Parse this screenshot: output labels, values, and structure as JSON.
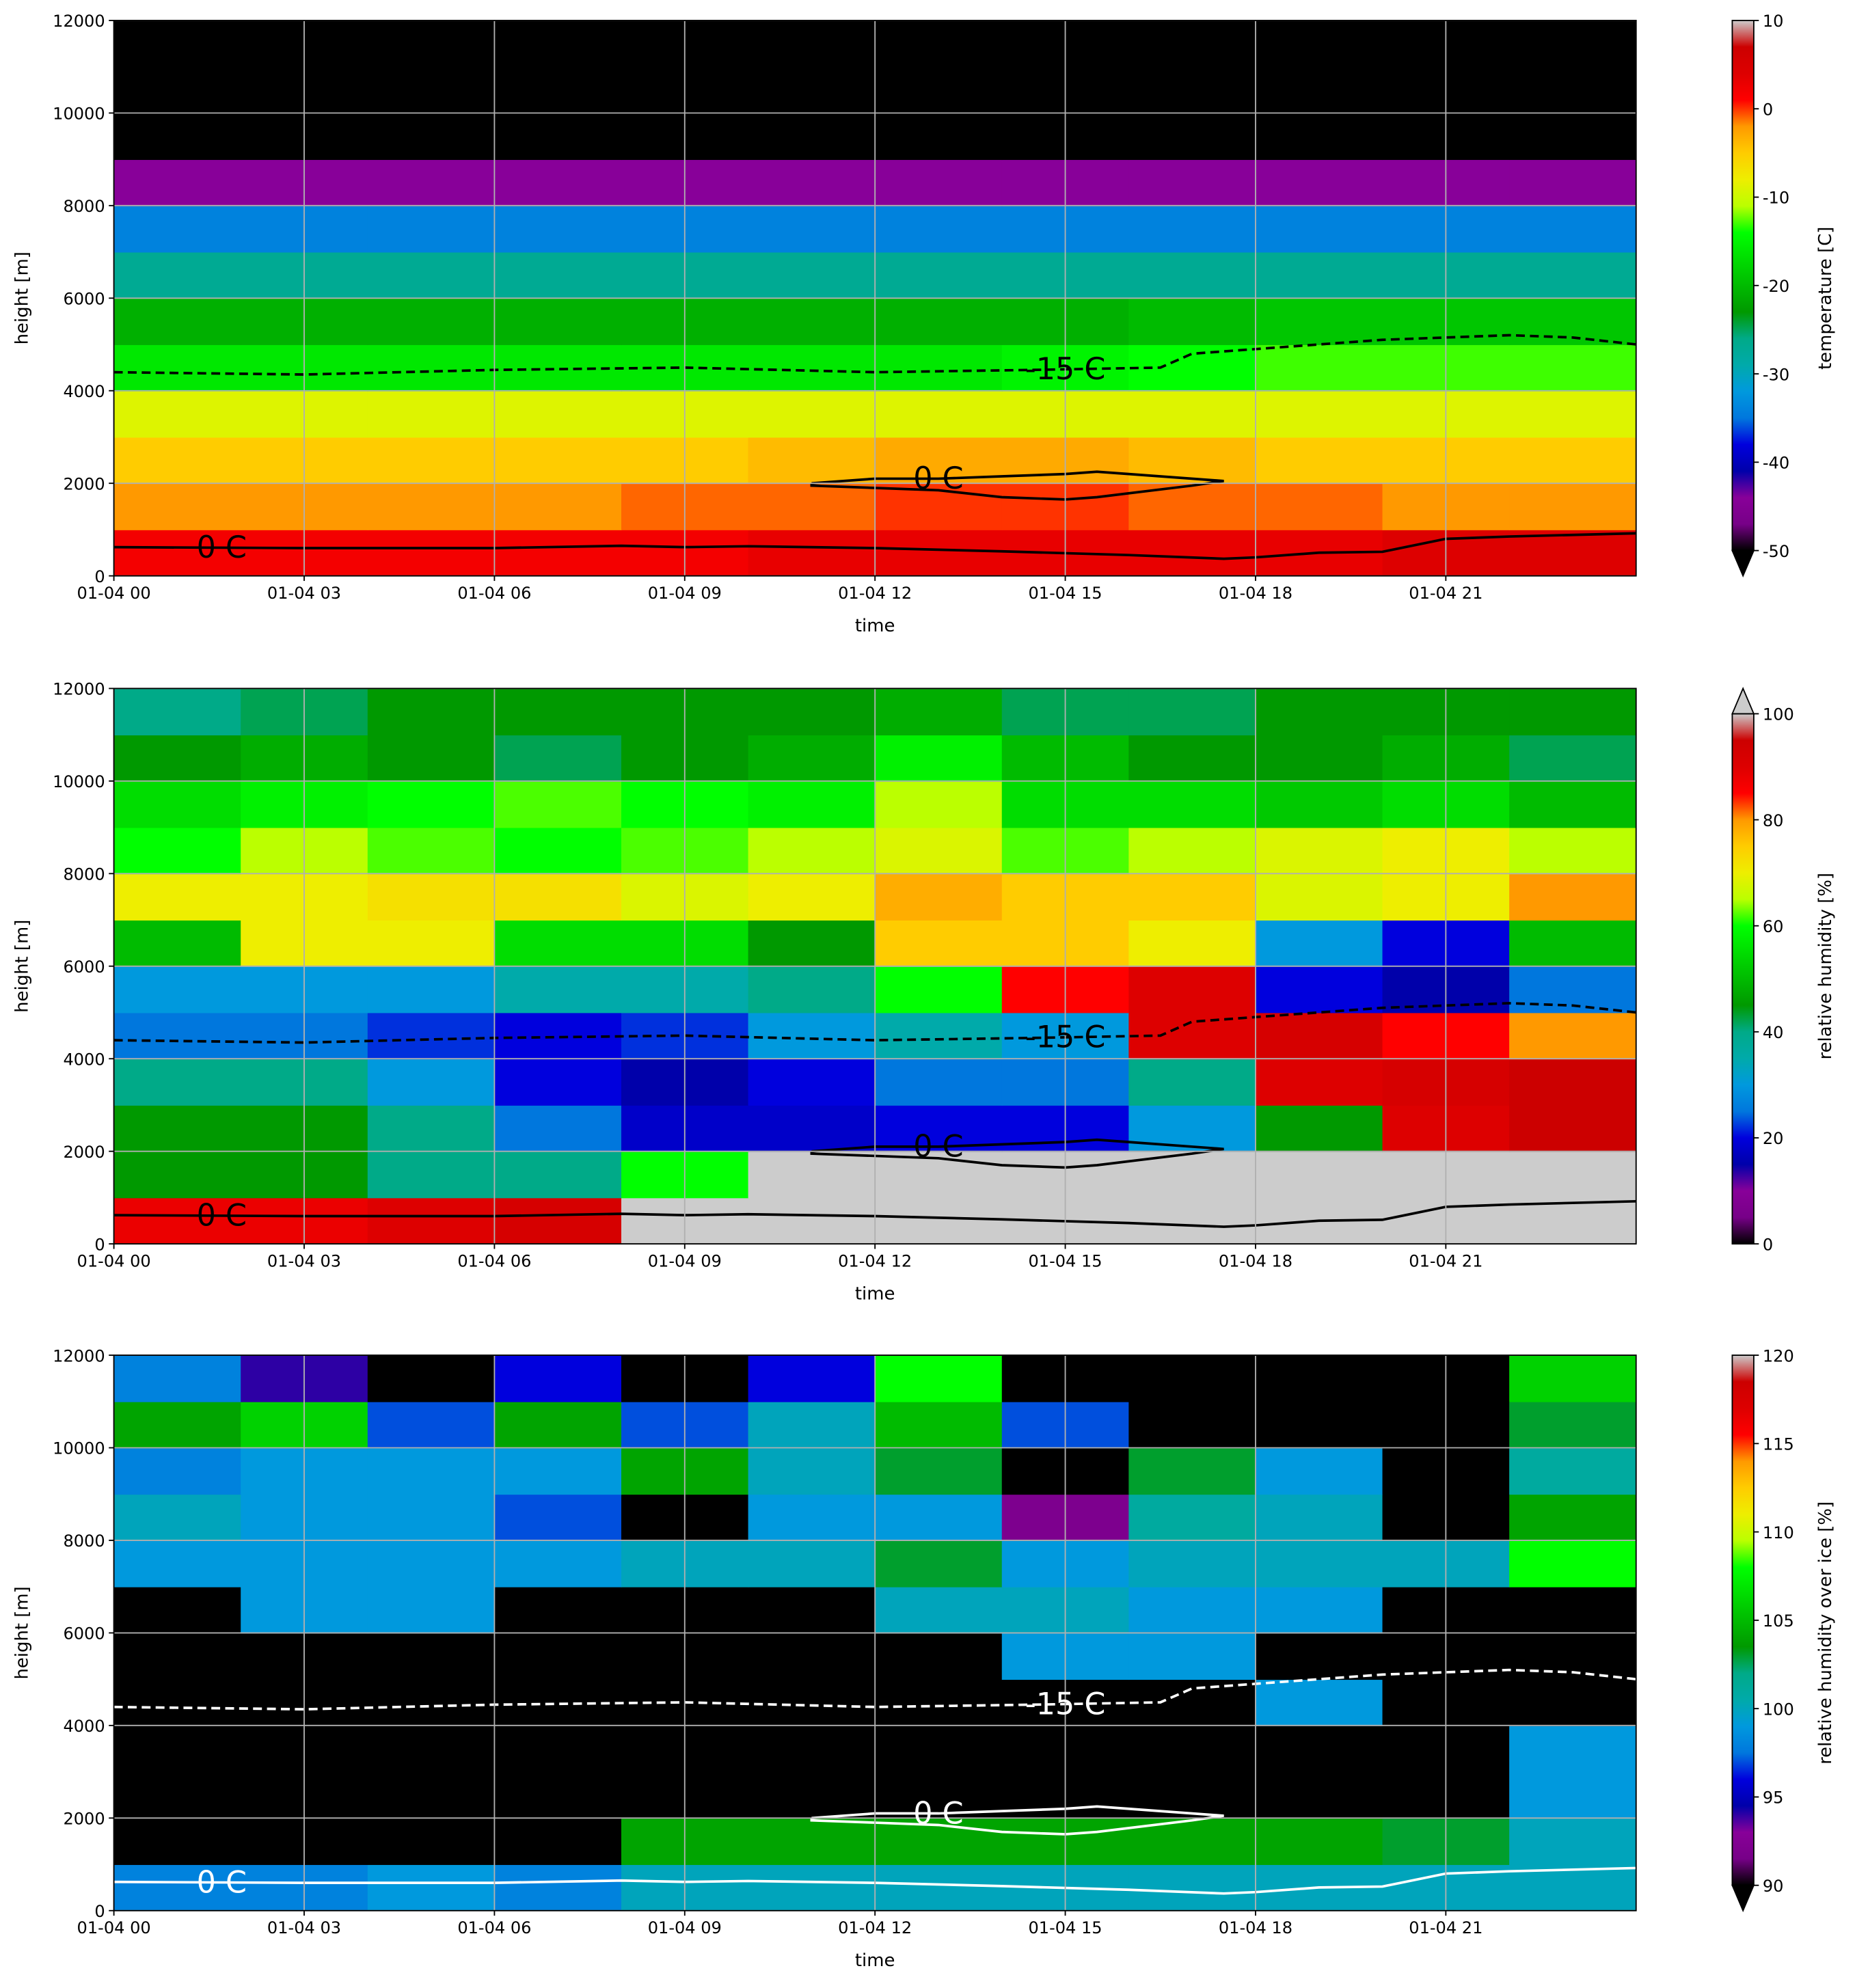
{
  "chart_data": [
    {
      "type": "heatmap",
      "xlabel": "time",
      "ylabel": "height [m]",
      "colormap": "nipy_spectral",
      "xlim": [
        0,
        24
      ],
      "xticks": [
        {
          "value": 0,
          "label": "01-04 00"
        },
        {
          "value": 3,
          "label": "01-04 03"
        },
        {
          "value": 6,
          "label": "01-04 06"
        },
        {
          "value": 9,
          "label": "01-04 09"
        },
        {
          "value": 12,
          "label": "01-04 12"
        },
        {
          "value": 15,
          "label": "01-04 15"
        },
        {
          "value": 18,
          "label": "01-04 18"
        },
        {
          "value": 21,
          "label": "01-04 21"
        }
      ],
      "ylim": [
        0,
        12000
      ],
      "yticks": [
        0,
        2000,
        4000,
        6000,
        8000,
        10000,
        12000
      ],
      "grid": true,
      "x": [
        1,
        3,
        5,
        7,
        9,
        11,
        13,
        15,
        17,
        19,
        21,
        23
      ],
      "y": [
        500,
        1500,
        2500,
        3500,
        4500,
        5500,
        6500,
        7500,
        8500,
        9500,
        10500,
        11500
      ],
      "z": [
        [
          2,
          2,
          2,
          2,
          2,
          3,
          3,
          3,
          3,
          3,
          4,
          4
        ],
        [
          -2,
          -2,
          -2,
          -2,
          -1,
          -1,
          0,
          0,
          -1,
          -1,
          -2,
          -2
        ],
        [
          -5,
          -5,
          -5,
          -5,
          -5,
          -4,
          -3,
          -3,
          -4,
          -5,
          -5,
          -5
        ],
        [
          -9,
          -9,
          -9,
          -9,
          -9,
          -9,
          -9,
          -9,
          -9,
          -9,
          -9,
          -9
        ],
        [
          -16,
          -16,
          -16,
          -16,
          -16,
          -16,
          -16,
          -15,
          -14,
          -13,
          -13,
          -13
        ],
        [
          -21,
          -21,
          -21,
          -21,
          -21,
          -21,
          -21,
          -21,
          -20,
          -19,
          -19,
          -19
        ],
        [
          -27,
          -27,
          -27,
          -27,
          -27,
          -27,
          -27,
          -27,
          -27,
          -27,
          -27,
          -27
        ],
        [
          -34,
          -34,
          -34,
          -34,
          -34,
          -34,
          -34,
          -34,
          -34,
          -34,
          -34,
          -34
        ],
        [
          -44,
          -44,
          -44,
          -44,
          -44,
          -44,
          -44,
          -44,
          -44,
          -44,
          -44,
          -44
        ],
        [
          -55,
          -55,
          -55,
          -55,
          -55,
          -55,
          -55,
          -55,
          -55,
          -55,
          -55,
          -55
        ],
        [
          -56,
          -56,
          -56,
          -56,
          -56,
          -56,
          -56,
          -56,
          -56,
          -56,
          -56,
          -56
        ],
        [
          -57,
          -57,
          -57,
          -57,
          -57,
          -57,
          -57,
          -57,
          -57,
          -57,
          -57,
          -57
        ]
      ],
      "colorbar": {
        "label": "temperature [C]",
        "lim": [
          -50,
          10
        ],
        "ticks": [
          10,
          0,
          -10,
          -20,
          -30,
          -40,
          -50
        ],
        "extend": "min"
      },
      "contour_color": "#000000",
      "contours": [
        {
          "name": "0 C",
          "style": "solid",
          "x": [
            0,
            3,
            6,
            8,
            9,
            10,
            12,
            14,
            16,
            17.5,
            18,
            19,
            20,
            21,
            22,
            24
          ],
          "y": [
            620,
            600,
            600,
            650,
            620,
            640,
            600,
            530,
            450,
            370,
            400,
            500,
            520,
            800,
            850,
            920
          ]
        },
        {
          "name": "0 C",
          "style": "solid",
          "x": [
            11,
            12,
            13,
            14,
            15,
            15.5,
            16,
            17.5,
            17,
            15.5,
            15,
            14,
            13,
            12,
            11,
            11
          ],
          "y": [
            2000,
            2100,
            2100,
            2150,
            2200,
            2250,
            2200,
            2050,
            1950,
            1700,
            1650,
            1700,
            1850,
            1900,
            1950,
            2000
          ]
        },
        {
          "name": "-15 C",
          "style": "dashed",
          "x": [
            0,
            3,
            6,
            9,
            12,
            14.5,
            16.5,
            17,
            18,
            20,
            22,
            23,
            24
          ],
          "y": [
            4400,
            4350,
            4450,
            4500,
            4400,
            4450,
            4500,
            4800,
            4900,
            5100,
            5200,
            5150,
            5000
          ]
        }
      ]
    },
    {
      "type": "heatmap",
      "xlabel": "time",
      "ylabel": "height [m]",
      "colormap": "nipy_spectral",
      "xlim": [
        0,
        24
      ],
      "xticks": [
        {
          "value": 0,
          "label": "01-04 00"
        },
        {
          "value": 3,
          "label": "01-04 03"
        },
        {
          "value": 6,
          "label": "01-04 06"
        },
        {
          "value": 9,
          "label": "01-04 09"
        },
        {
          "value": 12,
          "label": "01-04 12"
        },
        {
          "value": 15,
          "label": "01-04 15"
        },
        {
          "value": 18,
          "label": "01-04 18"
        },
        {
          "value": 21,
          "label": "01-04 21"
        }
      ],
      "ylim": [
        0,
        12000
      ],
      "yticks": [
        0,
        2000,
        4000,
        6000,
        8000,
        10000,
        12000
      ],
      "grid": true,
      "x": [
        1,
        3,
        5,
        7,
        9,
        11,
        13,
        15,
        17,
        19,
        21,
        23
      ],
      "y": [
        500,
        1500,
        2500,
        3500,
        4500,
        5500,
        6500,
        7500,
        8500,
        9500,
        10500,
        11500
      ],
      "z": [
        [
          88,
          88,
          90,
          92,
          101,
          101,
          101,
          101,
          101,
          101,
          101,
          101
        ],
        [
          45,
          45,
          40,
          40,
          60,
          102,
          102,
          102,
          102,
          102,
          102,
          102
        ],
        [
          45,
          45,
          40,
          25,
          18,
          18,
          20,
          20,
          30,
          45,
          90,
          95
        ],
        [
          40,
          40,
          30,
          20,
          15,
          20,
          25,
          25,
          40,
          90,
          92,
          95
        ],
        [
          25,
          25,
          22,
          20,
          22,
          30,
          35,
          30,
          90,
          92,
          85,
          80
        ],
        [
          30,
          30,
          30,
          35,
          35,
          40,
          60,
          85,
          90,
          20,
          15,
          25
        ],
        [
          50,
          70,
          70,
          55,
          55,
          45,
          75,
          75,
          70,
          30,
          20,
          50
        ],
        [
          70,
          70,
          72,
          72,
          68,
          70,
          78,
          75,
          75,
          68,
          70,
          80
        ],
        [
          60,
          65,
          62,
          60,
          62,
          65,
          68,
          62,
          65,
          68,
          70,
          65
        ],
        [
          55,
          58,
          60,
          62,
          60,
          58,
          65,
          55,
          55,
          52,
          55,
          50
        ],
        [
          45,
          48,
          45,
          42,
          45,
          48,
          58,
          50,
          45,
          45,
          48,
          42
        ],
        [
          40,
          42,
          45,
          45,
          45,
          45,
          48,
          42,
          42,
          45,
          45,
          45
        ]
      ],
      "colorbar": {
        "label": "relative humidity [%]",
        "lim": [
          0,
          100
        ],
        "ticks": [
          100,
          80,
          60,
          40,
          20,
          0
        ],
        "extend": "max"
      },
      "contour_color": "#000000",
      "contours": [
        {
          "name": "0 C",
          "style": "solid",
          "x": [
            0,
            3,
            6,
            8,
            9,
            10,
            12,
            14,
            16,
            17.5,
            18,
            19,
            20,
            21,
            22,
            24
          ],
          "y": [
            620,
            600,
            600,
            650,
            620,
            640,
            600,
            530,
            450,
            370,
            400,
            500,
            520,
            800,
            850,
            920
          ]
        },
        {
          "name": "0 C",
          "style": "solid",
          "x": [
            11,
            12,
            13,
            14,
            15,
            15.5,
            16,
            17.5,
            17,
            15.5,
            15,
            14,
            13,
            12,
            11,
            11
          ],
          "y": [
            2000,
            2100,
            2100,
            2150,
            2200,
            2250,
            2200,
            2050,
            1950,
            1700,
            1650,
            1700,
            1850,
            1900,
            1950,
            2000
          ]
        },
        {
          "name": "-15 C",
          "style": "dashed",
          "x": [
            0,
            3,
            6,
            9,
            12,
            14.5,
            16.5,
            17,
            18,
            20,
            22,
            23,
            24
          ],
          "y": [
            4400,
            4350,
            4450,
            4500,
            4400,
            4450,
            4500,
            4800,
            4900,
            5100,
            5200,
            5150,
            5000
          ]
        }
      ]
    },
    {
      "type": "heatmap",
      "xlabel": "time",
      "ylabel": "height [m]",
      "colormap": "nipy_spectral",
      "xlim": [
        0,
        24
      ],
      "xticks": [
        {
          "value": 0,
          "label": "01-04 00"
        },
        {
          "value": 3,
          "label": "01-04 03"
        },
        {
          "value": 6,
          "label": "01-04 06"
        },
        {
          "value": 9,
          "label": "01-04 09"
        },
        {
          "value": 12,
          "label": "01-04 12"
        },
        {
          "value": 15,
          "label": "01-04 15"
        },
        {
          "value": 18,
          "label": "01-04 18"
        },
        {
          "value": 21,
          "label": "01-04 21"
        }
      ],
      "ylim": [
        0,
        12000
      ],
      "yticks": [
        0,
        2000,
        4000,
        6000,
        8000,
        10000,
        12000
      ],
      "grid": true,
      "x": [
        1,
        3,
        5,
        7,
        9,
        11,
        13,
        15,
        17,
        19,
        21,
        23
      ],
      "y": [
        500,
        1500,
        2500,
        3500,
        4500,
        5500,
        6500,
        7500,
        8500,
        9500,
        10500,
        11500
      ],
      "z": [
        [
          98,
          98,
          99,
          98,
          100,
          100,
          100,
          100,
          100,
          100,
          100,
          100
        ],
        [
          80,
          80,
          80,
          80,
          104,
          104,
          104,
          104,
          104,
          104,
          103,
          100
        ],
        [
          80,
          80,
          80,
          80,
          80,
          80,
          80,
          80,
          80,
          80,
          80,
          99
        ],
        [
          80,
          80,
          80,
          80,
          80,
          80,
          80,
          80,
          80,
          80,
          85,
          99
        ],
        [
          80,
          80,
          80,
          80,
          80,
          80,
          80,
          80,
          80,
          99,
          80,
          80
        ],
        [
          80,
          80,
          80,
          80,
          80,
          80,
          80,
          99,
          99,
          80,
          80,
          80
        ],
        [
          80,
          99,
          99,
          80,
          80,
          80,
          100,
          100,
          99,
          99,
          80,
          80
        ],
        [
          99,
          99,
          99,
          99,
          100,
          100,
          103,
          99,
          100,
          100,
          100,
          108
        ],
        [
          100,
          99,
          99,
          97,
          80,
          99,
          99,
          92,
          101,
          100,
          80,
          104
        ],
        [
          98,
          99,
          99,
          99,
          104,
          100,
          103,
          80,
          103,
          99,
          80,
          101
        ],
        [
          104,
          106,
          97,
          104,
          97,
          100,
          105,
          97,
          80,
          80,
          80,
          103
        ],
        [
          98,
          94,
          80,
          96,
          80,
          96,
          108,
          80,
          80,
          80,
          80,
          106
        ]
      ],
      "colorbar": {
        "label": "relative humidity over ice [%]",
        "lim": [
          90,
          120
        ],
        "ticks": [
          120,
          115,
          110,
          105,
          100,
          95,
          90
        ],
        "extend": "min"
      },
      "contour_color": "#ffffff",
      "contours": [
        {
          "name": "0 C",
          "style": "solid",
          "x": [
            0,
            3,
            6,
            8,
            9,
            10,
            12,
            14,
            16,
            17.5,
            18,
            19,
            20,
            21,
            22,
            24
          ],
          "y": [
            620,
            600,
            600,
            650,
            620,
            640,
            600,
            530,
            450,
            370,
            400,
            500,
            520,
            800,
            850,
            920
          ]
        },
        {
          "name": "0 C",
          "style": "solid",
          "x": [
            11,
            12,
            13,
            14,
            15,
            15.5,
            16,
            17.5,
            17,
            15.5,
            15,
            14,
            13,
            12,
            11,
            11
          ],
          "y": [
            2000,
            2100,
            2100,
            2150,
            2200,
            2250,
            2200,
            2050,
            1950,
            1700,
            1650,
            1700,
            1850,
            1900,
            1950,
            2000
          ]
        },
        {
          "name": "-15 C",
          "style": "dashed",
          "x": [
            0,
            3,
            6,
            9,
            12,
            14.5,
            16.5,
            17,
            18,
            20,
            22,
            23,
            24
          ],
          "y": [
            4400,
            4350,
            4450,
            4500,
            4400,
            4450,
            4500,
            4800,
            4900,
            5100,
            5200,
            5150,
            5000
          ]
        }
      ]
    }
  ]
}
